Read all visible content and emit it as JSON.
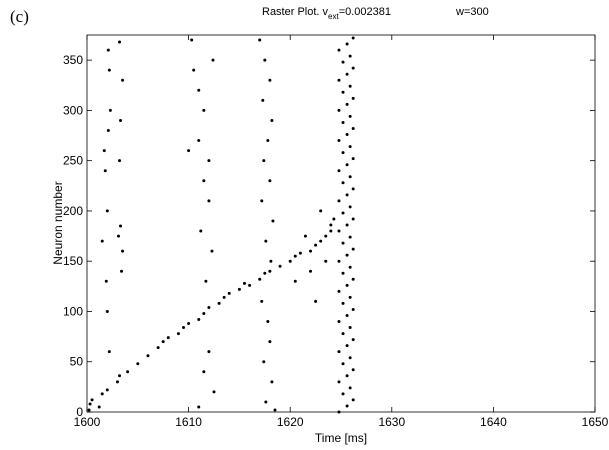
{
  "chart_data": {
    "type": "scatter",
    "panel_label": "(c)",
    "title": {
      "main": "Raster Plot. v",
      "subscript": "ext",
      "suffix": "=0.002381"
    },
    "annotation": "w=300",
    "x_label": "Time [ms]",
    "y_label": "Neuron number",
    "xlim": [
      1600,
      1650
    ],
    "xticks": [
      1600,
      1610,
      1620,
      1630,
      1640,
      1650
    ],
    "ylim": [
      0,
      375
    ],
    "yticks": [
      0,
      50,
      100,
      150,
      200,
      250,
      300,
      350
    ],
    "grid": false,
    "series": [
      {
        "color": "#000000",
        "x": [
          1600.2,
          1600.3,
          1600.5,
          1601.2,
          1601.5,
          1602,
          1603,
          1603.2,
          1604,
          1605,
          1606,
          1607,
          1607.5,
          1608,
          1609,
          1609.5,
          1610,
          1611,
          1611.5,
          1612,
          1613,
          1613.5,
          1614,
          1615,
          1615.5,
          1616,
          1617,
          1617.5,
          1618,
          1619,
          1620,
          1620.5,
          1621,
          1622,
          1622.5,
          1623,
          1623.5,
          1624,
          1624,
          1624.3,
          1602.1,
          1602.2,
          1602.3,
          1602.1,
          1601.8,
          1602,
          1601.9,
          1602,
          1602.2,
          1601.5,
          1601.7,
          1603.2,
          1603.5,
          1603.3,
          1603.2,
          1603.3,
          1603.5,
          1603.1,
          1603.4,
          1610.3,
          1610.5,
          1611,
          1611.5,
          1611,
          1612,
          1611.5,
          1612,
          1611.2,
          1612.3,
          1611.7,
          1612,
          1611.5,
          1612.5,
          1611,
          1612.4,
          1610,
          1617,
          1617.5,
          1618,
          1617.3,
          1618.2,
          1617.8,
          1617.4,
          1618,
          1617.2,
          1618.3,
          1617.6,
          1618.1,
          1617.2,
          1617.8,
          1618,
          1617.4,
          1618.2,
          1617.6,
          1618.5,
          1620.5,
          1621.5,
          1622,
          1623,
          1623.5,
          1622.5,
          1624.8,
          1625.6,
          1626.2,
          1625.2,
          1625.9,
          1624.8,
          1625.6,
          1626.2,
          1625.2,
          1625.9,
          1624.8,
          1625.6,
          1626.2,
          1625.2,
          1625.9,
          1624.8,
          1625.6,
          1626.2,
          1625.2,
          1625.9,
          1624.8,
          1625.6,
          1626.2,
          1625.2,
          1625.9,
          1624.8,
          1625.6,
          1626.2,
          1625.2,
          1625.9,
          1624.8,
          1625.6,
          1626.2,
          1625.2,
          1625.9,
          1624.8,
          1625.6,
          1626.2,
          1625.2,
          1625.9,
          1624.8,
          1625.6,
          1626.2,
          1625.2,
          1625.9,
          1624.8,
          1625.6,
          1626.2,
          1625.2,
          1625.9,
          1624.8,
          1625.6,
          1626.2,
          1625.2,
          1625.9,
          1624.8,
          1625.6,
          1626.2,
          1625.2,
          1625.9,
          1624.8,
          1625.6,
          1626.2
        ],
        "y": [
          2,
          8,
          12,
          5,
          18,
          22,
          30,
          36,
          40,
          48,
          56,
          64,
          70,
          74,
          78,
          84,
          88,
          92,
          98,
          104,
          108,
          114,
          118,
          122,
          128,
          126,
          132,
          138,
          140,
          145,
          150,
          155,
          158,
          160,
          166,
          170,
          175,
          180,
          186,
          192,
          360,
          340,
          300,
          280,
          240,
          200,
          130,
          100,
          60,
          170,
          260,
          368,
          330,
          290,
          250,
          185,
          160,
          175,
          140,
          370,
          340,
          320,
          300,
          270,
          250,
          230,
          210,
          180,
          160,
          130,
          60,
          40,
          20,
          5,
          350,
          260,
          370,
          350,
          330,
          310,
          290,
          270,
          250,
          230,
          210,
          190,
          170,
          150,
          110,
          90,
          70,
          50,
          30,
          10,
          2,
          130,
          175,
          140,
          200,
          150,
          110,
          0,
          6,
          12,
          18,
          24,
          30,
          36,
          42,
          48,
          54,
          60,
          66,
          72,
          78,
          84,
          90,
          96,
          102,
          108,
          114,
          120,
          126,
          132,
          138,
          144,
          150,
          156,
          162,
          168,
          174,
          180,
          186,
          192,
          198,
          204,
          210,
          216,
          222,
          228,
          234,
          240,
          246,
          252,
          258,
          264,
          270,
          276,
          282,
          288,
          294,
          300,
          306,
          312,
          318,
          324,
          330,
          336,
          342,
          348,
          354,
          360,
          366,
          372
        ]
      }
    ]
  }
}
